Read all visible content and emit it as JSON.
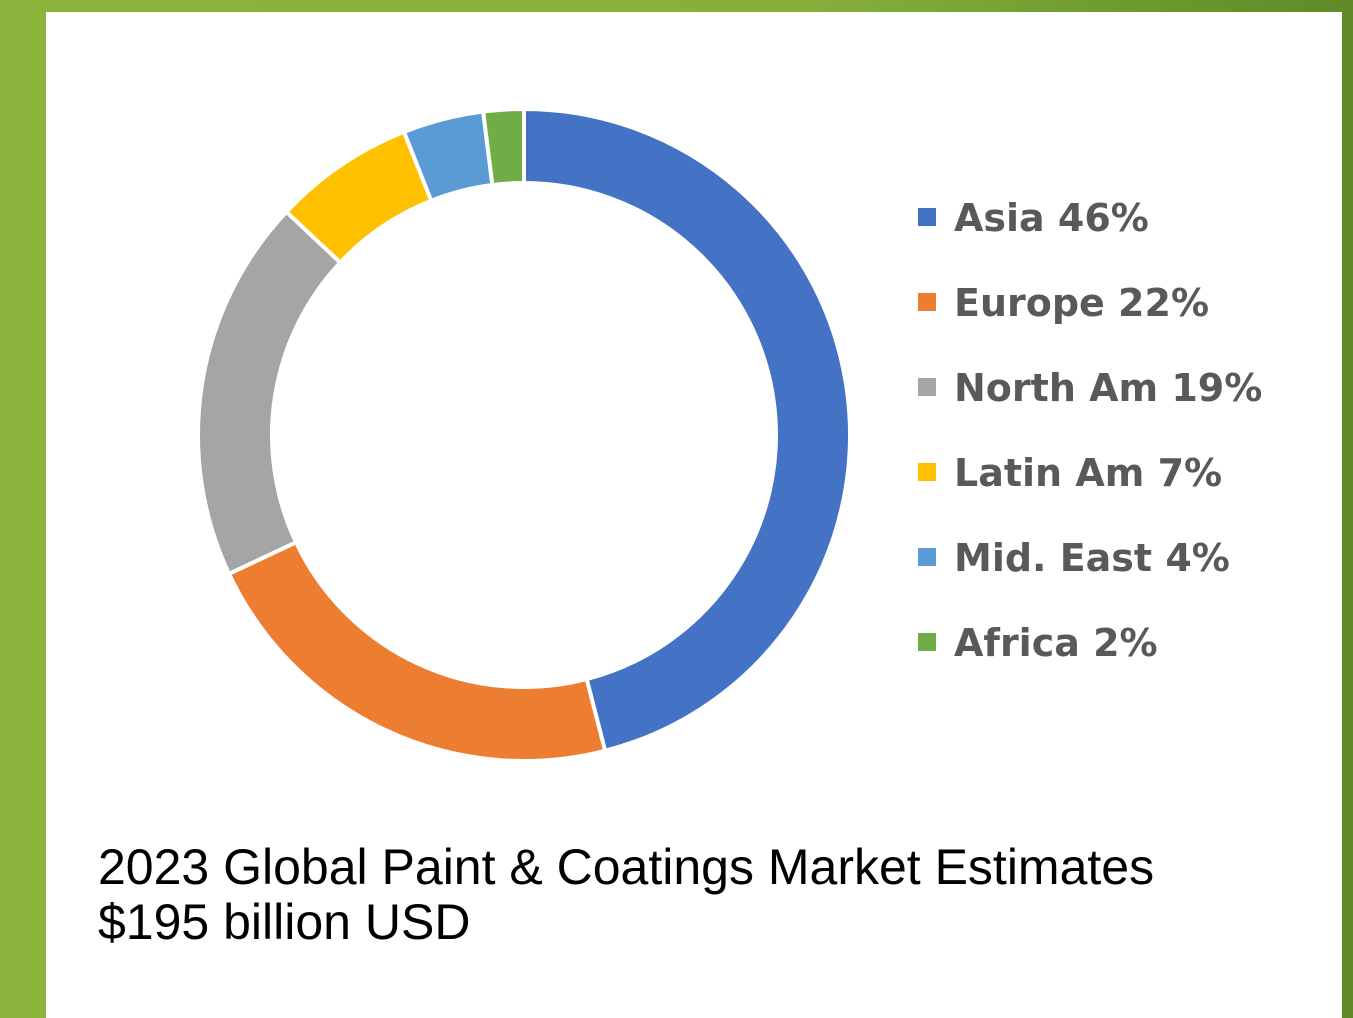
{
  "chart_data": {
    "type": "pie",
    "donut": true,
    "categories": [
      "Asia",
      "Europe",
      "North Am",
      "Latin Am",
      "Mid. East",
      "Africa"
    ],
    "values": [
      46,
      22,
      19,
      7,
      4,
      2
    ],
    "unit": "%",
    "legend_labels": [
      "Asia 46%",
      "Europe 22%",
      "North Am 19%",
      "Latin Am 7%",
      "Mid. East 4%",
      "Africa 2%"
    ],
    "colors": [
      "#4472c4",
      "#ed7d31",
      "#a5a5a5",
      "#ffc000",
      "#5b9bd5",
      "#70ad47"
    ],
    "legend_position": "right",
    "start_angle": "top",
    "direction": "clockwise"
  },
  "caption": {
    "line1": "2023 Global Paint & Coatings Market Estimates",
    "line2": "$195 billion USD"
  },
  "theme": {
    "frame_color": "#86b03a",
    "card_color": "#ffffff"
  }
}
